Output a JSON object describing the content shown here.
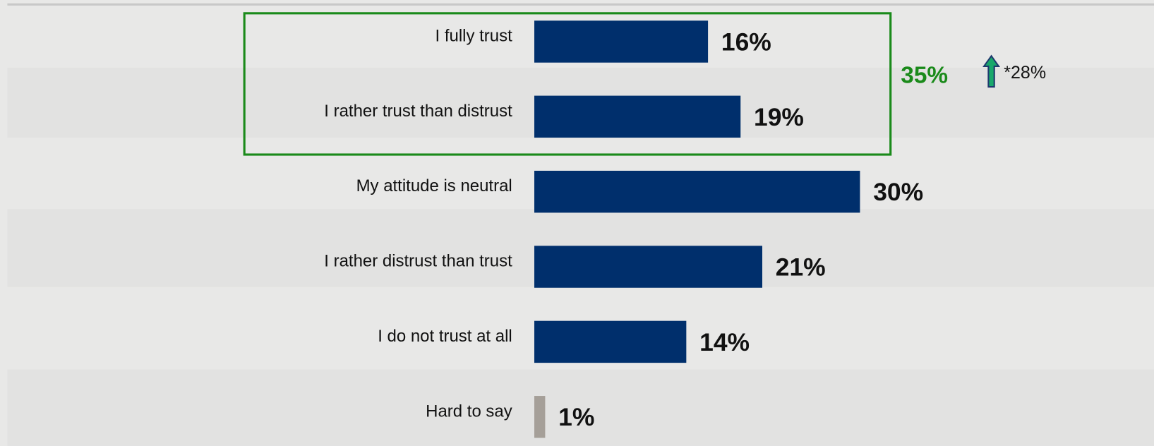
{
  "chart_data": {
    "type": "bar",
    "categories": [
      "I fully trust",
      "I rather trust than distrust",
      "My attitude is neutral",
      "I rather distrust than trust",
      "I do not trust at all",
      "Hard to say"
    ],
    "values": [
      16,
      19,
      30,
      21,
      14,
      1
    ],
    "value_labels": [
      "16%",
      "19%",
      "30%",
      "21%",
      "14%",
      "1%"
    ],
    "colors": [
      "#002f6c",
      "#002f6c",
      "#002f6c",
      "#002f6c",
      "#002f6c",
      "#a59f98"
    ],
    "annotations": [
      {
        "text": "35%",
        "color": "#1a8a1a"
      },
      {
        "text": "*28%",
        "color": "#111111"
      }
    ]
  }
}
